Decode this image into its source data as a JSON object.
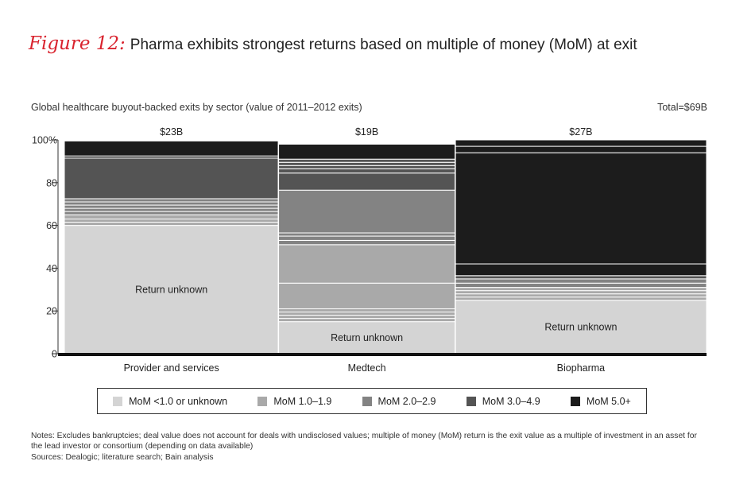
{
  "figure": {
    "label": "Figure 12:",
    "title": "Pharma exhibits strongest returns based on multiple of money (MoM) at exit"
  },
  "chart_data": {
    "type": "bar",
    "subtype": "marimekko-stacked-100",
    "subtitle": "Global healthcare buyout-backed exits by sector (value of 2011–2012 exits)",
    "total_label": "Total=$69B",
    "ylim": [
      0,
      100
    ],
    "y_ticks": [
      "0",
      "20",
      "40",
      "60",
      "80",
      "100%"
    ],
    "categories": [
      {
        "name": "Provider and services",
        "value_label": "$23B",
        "value": 23,
        "inside_label": "Return unknown",
        "segments": [
          {
            "cat": 0,
            "value": 60
          },
          {
            "cat": 1,
            "value": 1.5
          },
          {
            "cat": 1,
            "value": 1.5
          },
          {
            "cat": 1,
            "value": 2
          },
          {
            "cat": 2,
            "value": 1.5
          },
          {
            "cat": 2,
            "value": 1.5
          },
          {
            "cat": 2,
            "value": 1.5
          },
          {
            "cat": 2,
            "value": 1.5
          },
          {
            "cat": 2,
            "value": 1.5
          },
          {
            "cat": 3,
            "value": 19
          },
          {
            "cat": 4,
            "value": 1
          },
          {
            "cat": 4,
            "value": 7
          }
        ]
      },
      {
        "name": "Medtech",
        "value_label": "$19B",
        "value": 19,
        "inside_label": "Return unknown",
        "segments": [
          {
            "cat": 0,
            "value": 15
          },
          {
            "cat": 1,
            "value": 1.5
          },
          {
            "cat": 1,
            "value": 1.5
          },
          {
            "cat": 1,
            "value": 1.5
          },
          {
            "cat": 1,
            "value": 1.5
          },
          {
            "cat": 1,
            "value": 12
          },
          {
            "cat": 1,
            "value": 18
          },
          {
            "cat": 2,
            "value": 2
          },
          {
            "cat": 2,
            "value": 2
          },
          {
            "cat": 2,
            "value": 1.5
          },
          {
            "cat": 2,
            "value": 20
          },
          {
            "cat": 3,
            "value": 8
          },
          {
            "cat": 3,
            "value": 2
          },
          {
            "cat": 3,
            "value": 1.5
          },
          {
            "cat": 3,
            "value": 1.5
          },
          {
            "cat": 3,
            "value": 1.5
          },
          {
            "cat": 4,
            "value": 7
          }
        ]
      },
      {
        "name": "Biopharma",
        "value_label": "$27B",
        "value": 27,
        "inside_label": "Return unknown",
        "segments": [
          {
            "cat": 0,
            "value": 25
          },
          {
            "cat": 1,
            "value": 1.5
          },
          {
            "cat": 1,
            "value": 1.5
          },
          {
            "cat": 1,
            "value": 1.5
          },
          {
            "cat": 1,
            "value": 1.5
          },
          {
            "cat": 2,
            "value": 2
          },
          {
            "cat": 2,
            "value": 2
          },
          {
            "cat": 3,
            "value": 1.5
          },
          {
            "cat": 4,
            "value": 5.5
          },
          {
            "cat": 4,
            "value": 52
          },
          {
            "cat": 4,
            "value": 3
          },
          {
            "cat": 4,
            "value": 3
          }
        ]
      }
    ],
    "legend": [
      {
        "label": "MoM <1.0 or unknown",
        "color": "#d4d4d4"
      },
      {
        "label": "MoM 1.0–1.9",
        "color": "#a9a9a9"
      },
      {
        "label": "MoM 2.0–2.9",
        "color": "#838383"
      },
      {
        "label": "MoM 3.0–4.9",
        "color": "#545454"
      },
      {
        "label": "MoM 5.0+",
        "color": "#1c1c1c"
      }
    ]
  },
  "notes": {
    "line1": "Notes: Excludes bankruptcies; deal value does not account for deals with undisclosed values; multiple of money (MoM) return is the exit value as a multiple of investment in an asset for the lead investor or consortium (depending on data available)",
    "line2": "Sources: Dealogic; literature search; Bain analysis"
  }
}
